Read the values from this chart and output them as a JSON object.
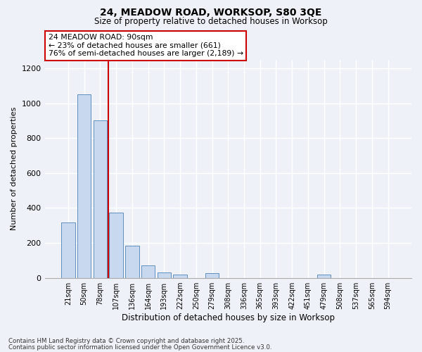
{
  "title1": "24, MEADOW ROAD, WORKSOP, S80 3QE",
  "title2": "Size of property relative to detached houses in Worksop",
  "xlabel": "Distribution of detached houses by size in Worksop",
  "ylabel": "Number of detached properties",
  "categories": [
    "21sqm",
    "50sqm",
    "78sqm",
    "107sqm",
    "136sqm",
    "164sqm",
    "193sqm",
    "222sqm",
    "250sqm",
    "279sqm",
    "308sqm",
    "336sqm",
    "365sqm",
    "393sqm",
    "422sqm",
    "451sqm",
    "479sqm",
    "508sqm",
    "537sqm",
    "565sqm",
    "594sqm"
  ],
  "values": [
    315,
    1050,
    900,
    375,
    185,
    70,
    30,
    20,
    0,
    25,
    0,
    0,
    0,
    0,
    0,
    0,
    20,
    0,
    0,
    0,
    0
  ],
  "bar_color": "#c8d8ee",
  "bar_edge_color": "#6090c0",
  "vline_color": "#cc0000",
  "annotation_line1": "24 MEADOW ROAD: 90sqm",
  "annotation_line2": "← 23% of detached houses are smaller (661)",
  "annotation_line3": "76% of semi-detached houses are larger (2,189) →",
  "annotation_box_color": "#ffffff",
  "annotation_border_color": "#cc0000",
  "ylim": [
    0,
    1250
  ],
  "yticks": [
    0,
    200,
    400,
    600,
    800,
    1000,
    1200
  ],
  "footer1": "Contains HM Land Registry data © Crown copyright and database right 2025.",
  "footer2": "Contains public sector information licensed under the Open Government Licence v3.0.",
  "bg_color": "#eef2f8",
  "plot_bg_color": "#eef2f8",
  "grid_color": "#ffffff",
  "vline_x_index": 2.5
}
